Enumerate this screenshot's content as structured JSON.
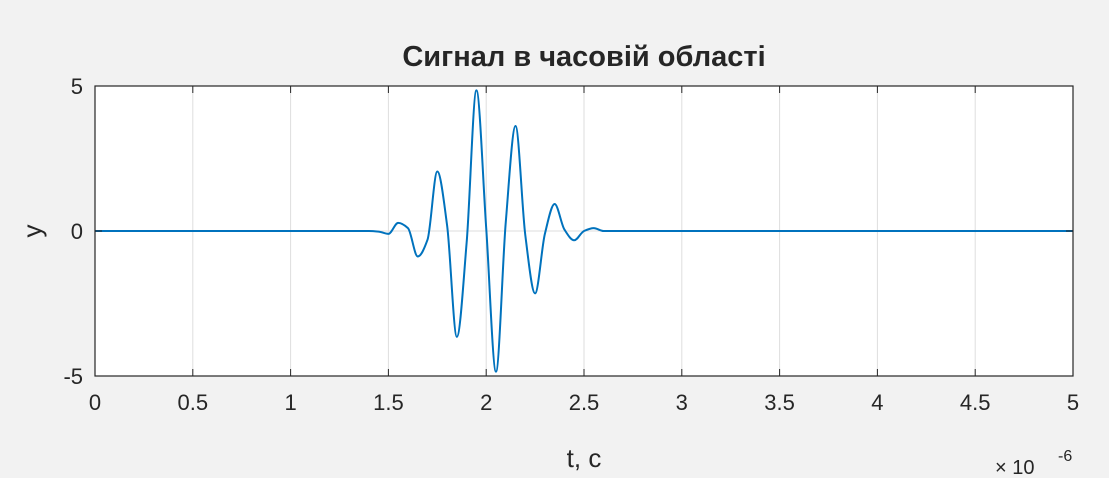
{
  "chart_data": {
    "type": "line",
    "title": "Сигнал в часовій області",
    "xlabel": "t, c",
    "ylabel": "y",
    "x_exponent_label": "× 10",
    "x_exponent_power": "-6",
    "xlim": [
      0,
      5
    ],
    "ylim": [
      -5,
      5
    ],
    "x_scale": "×1e-6",
    "xticks": [
      0,
      0.5,
      1,
      1.5,
      2,
      2.5,
      3,
      3.5,
      4,
      4.5,
      5
    ],
    "xtick_labels": [
      "0",
      "0.5",
      "1",
      "1.5",
      "2",
      "2.5",
      "3",
      "3.5",
      "4",
      "4.5",
      "5"
    ],
    "yticks": [
      -5,
      0,
      5
    ],
    "ytick_labels": [
      "-5",
      "0",
      "5"
    ],
    "grid": true,
    "legend": "none",
    "series": [
      {
        "color": "#0072bd",
        "x": [
          0,
          1.4,
          1.45,
          1.5,
          1.55,
          1.6,
          1.65,
          1.7,
          1.75,
          1.8,
          1.85,
          1.9,
          1.95,
          2.0,
          2.05,
          2.1,
          2.15,
          2.2,
          2.25,
          2.3,
          2.35,
          2.4,
          2.45,
          2.5,
          2.55,
          2.6,
          5
        ],
        "y": [
          0,
          0,
          -0.02,
          -0.1,
          0.28,
          0.1,
          -0.88,
          -0.3,
          2.05,
          0.2,
          -3.65,
          -0.4,
          4.85,
          0.1,
          -4.85,
          0.3,
          3.62,
          -0.15,
          -2.15,
          -0.1,
          0.93,
          0.05,
          -0.32,
          0.0,
          0.1,
          0.0,
          0
        ]
      }
    ]
  }
}
